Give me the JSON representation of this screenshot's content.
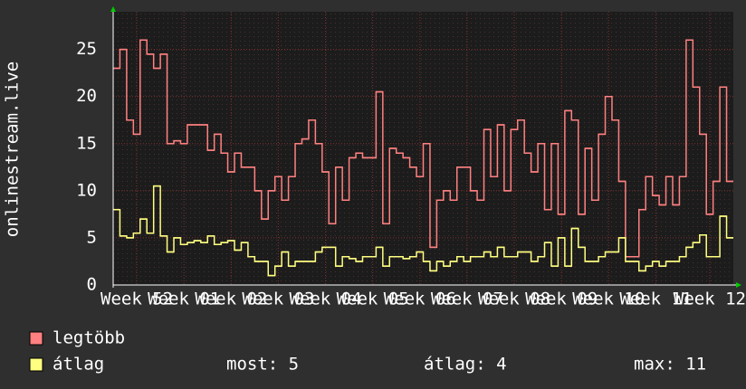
{
  "chart_data": {
    "type": "step-line",
    "y_label": "onlinestream.live",
    "categories": [
      null,
      null,
      null,
      "Week 52",
      null,
      null,
      null,
      null,
      null,
      null,
      "Week 01",
      null,
      null,
      null,
      null,
      null,
      null,
      "Week 02",
      null,
      null,
      null,
      null,
      null,
      null,
      "Week 03",
      null,
      null,
      null,
      null,
      null,
      null,
      "Week 04",
      null,
      null,
      null,
      null,
      null,
      null,
      "Week 05",
      null,
      null,
      null,
      null,
      null,
      null,
      "Week 06",
      null,
      null,
      null,
      null,
      null,
      null,
      "Week 07",
      null,
      null,
      null,
      null,
      null,
      null,
      "Week 08",
      null,
      null,
      null,
      null,
      null,
      null,
      "Week 09",
      null,
      null,
      null,
      null,
      null,
      null,
      "Week 10",
      null,
      null,
      null,
      null,
      null,
      null,
      "Week 11",
      null,
      null,
      null,
      null,
      null,
      null,
      null,
      "Week 12",
      null,
      null,
      null
    ],
    "series": [
      {
        "name": "legtöbb",
        "color": "#ff8080",
        "values": [
          23,
          25,
          17.5,
          16,
          26,
          24.5,
          23,
          24.5,
          15,
          15.3,
          15,
          17,
          17,
          17,
          14.3,
          16,
          14,
          12,
          14,
          12.5,
          12.5,
          10,
          7,
          10,
          11.5,
          9,
          11.5,
          15,
          15.5,
          17.5,
          15,
          12,
          6.5,
          12.5,
          9,
          13.5,
          14,
          13.5,
          13.5,
          20.5,
          6.5,
          14.5,
          14,
          13.5,
          12.5,
          11.5,
          15,
          4,
          9,
          10,
          9,
          12.5,
          12.5,
          10,
          9,
          16.5,
          11.5,
          17,
          10,
          16.5,
          17.5,
          14,
          12,
          15,
          8,
          15,
          7.5,
          18.5,
          17.5,
          7.5,
          14.5,
          9,
          16,
          20,
          17.5,
          11,
          3,
          3,
          8,
          11.5,
          9.5,
          8.5,
          11.5,
          8.5,
          11.5,
          26,
          21,
          16,
          7.5,
          11,
          21,
          11
        ]
      },
      {
        "name": "átlag",
        "color": "#ffff80",
        "values": [
          8,
          5.2,
          5,
          5.5,
          7,
          5.5,
          10.5,
          5.2,
          3.5,
          5,
          4.3,
          4.5,
          4.7,
          4.5,
          5.2,
          4.3,
          4.5,
          4.7,
          3.7,
          4.5,
          3,
          2.5,
          2.5,
          1,
          2,
          3.5,
          2,
          2.5,
          2.5,
          2.5,
          3.5,
          4,
          4,
          2,
          3,
          2.8,
          2.5,
          3,
          3,
          4,
          2,
          3,
          3,
          2.8,
          3,
          3.5,
          2.5,
          1.5,
          2.5,
          2,
          2.5,
          3,
          2.5,
          3,
          3,
          3.5,
          3,
          4,
          3,
          3,
          3.5,
          3.5,
          2.5,
          3,
          4.5,
          2,
          5,
          2,
          6,
          4,
          2.5,
          2.5,
          3,
          3.5,
          3.5,
          5,
          2.5,
          2.5,
          1.5,
          2,
          2.5,
          2,
          2.5,
          2.5,
          3,
          4,
          4.5,
          5.3,
          3,
          3,
          7.3,
          5
        ]
      }
    ],
    "stats": [
      "most: 5",
      "átlag: 4",
      "max: 11"
    ],
    "ylim": [
      0,
      29
    ],
    "yticks": [
      0,
      5,
      10,
      15,
      20,
      25
    ],
    "grid": true
  }
}
